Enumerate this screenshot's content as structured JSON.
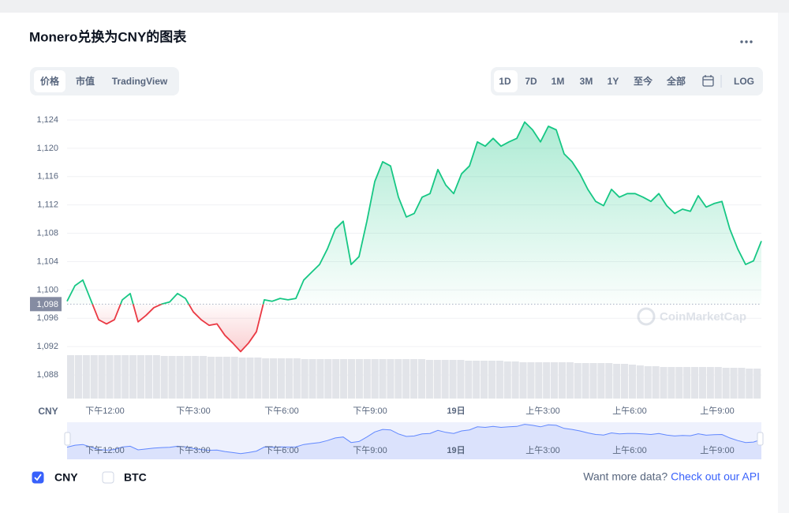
{
  "header": {
    "title": "Monero兑换为CNY的图表"
  },
  "tabs": [
    "价格",
    "市值",
    "TradingView"
  ],
  "ranges": [
    "1D",
    "7D",
    "1M",
    "3M",
    "1Y",
    "至今",
    "全部"
  ],
  "log_button": "LOG",
  "chart_data": {
    "type": "line",
    "y_unit": "CNY",
    "watermark": "CoinMarketCap",
    "up_color": "#16c784",
    "down_color": "#ea3943",
    "navigator_color": "#6188ff",
    "grid": true,
    "baseline": {
      "value": 1098,
      "label": "1,098"
    },
    "xlim": [
      0,
      88
    ],
    "xticks": [
      {
        "value": 4.8,
        "label": "下午12:00"
      },
      {
        "value": 16,
        "label": "下午3:00"
      },
      {
        "value": 27.2,
        "label": "下午6:00"
      },
      {
        "value": 38.4,
        "label": "下午9:00"
      },
      {
        "value": 49.3,
        "label": "19日",
        "bold": true
      },
      {
        "value": 60.3,
        "label": "上午3:00"
      },
      {
        "value": 71.3,
        "label": "上午6:00"
      },
      {
        "value": 82.4,
        "label": "上午9:00"
      }
    ],
    "ylim": [
      1085,
      1126
    ],
    "yticks": [
      {
        "value": 1088,
        "label": "1,088"
      },
      {
        "value": 1092,
        "label": "1,092"
      },
      {
        "value": 1096,
        "label": "1,096"
      },
      {
        "value": 1100,
        "label": "1,100"
      },
      {
        "value": 1104,
        "label": "1,104"
      },
      {
        "value": 1108,
        "label": "1,108"
      },
      {
        "value": 1112,
        "label": "1,112"
      },
      {
        "value": 1116,
        "label": "1,116"
      },
      {
        "value": 1120,
        "label": "1,120"
      },
      {
        "value": 1124,
        "label": "1,124"
      }
    ],
    "series": [
      {
        "name": "CNY",
        "values": [
          1098.4,
          1100.6,
          1101.4,
          1098.6,
          1095.8,
          1095.2,
          1095.8,
          1098.6,
          1099.5,
          1095.5,
          1096.4,
          1097.5,
          1098.0,
          1098.3,
          1099.5,
          1098.8,
          1096.9,
          1095.8,
          1095.0,
          1095.2,
          1093.6,
          1092.5,
          1091.3,
          1092.5,
          1094.1,
          1098.6,
          1098.4,
          1098.8,
          1098.6,
          1098.8,
          1101.4,
          1102.5,
          1103.6,
          1105.8,
          1108.6,
          1109.7,
          1103.6,
          1104.7,
          1109.7,
          1115.3,
          1118.1,
          1117.5,
          1113.1,
          1110.3,
          1110.8,
          1113.1,
          1113.6,
          1117.0,
          1114.8,
          1113.6,
          1116.4,
          1117.5,
          1120.9,
          1120.3,
          1121.4,
          1120.3,
          1120.9,
          1121.4,
          1123.7,
          1122.6,
          1120.9,
          1123.1,
          1122.6,
          1119.2,
          1118.1,
          1116.4,
          1114.2,
          1112.5,
          1111.9,
          1114.2,
          1113.1,
          1113.6,
          1113.6,
          1113.1,
          1112.5,
          1113.6,
          1111.9,
          1110.8,
          1111.4,
          1111.1,
          1113.3,
          1111.7,
          1112.2,
          1112.5,
          1108.6,
          1105.8,
          1103.6,
          1104.1,
          1106.9
        ]
      }
    ],
    "volume": [
      55,
      55,
      55,
      55,
      55,
      55,
      55,
      55,
      55,
      55,
      55,
      55,
      54,
      54,
      54,
      54,
      54,
      54,
      53,
      53,
      53,
      53,
      52,
      52,
      52,
      51,
      51,
      51,
      51,
      51,
      50,
      50,
      50,
      50,
      50,
      50,
      50,
      50,
      50,
      50,
      50,
      50,
      50,
      50,
      50,
      50,
      49,
      49,
      49,
      49,
      49,
      48,
      48,
      48,
      48,
      48,
      47,
      47,
      46,
      46,
      46,
      46,
      46,
      46,
      46,
      45,
      45,
      45,
      45,
      45,
      44,
      44,
      43,
      42,
      41,
      41,
      40,
      40,
      40,
      40,
      40,
      40,
      40,
      40,
      39,
      39,
      39,
      38,
      38
    ]
  },
  "legend": [
    {
      "label": "CNY",
      "checked": true
    },
    {
      "label": "BTC",
      "checked": false
    }
  ],
  "footer": {
    "text": "Want more data?",
    "link": "Check out our API"
  }
}
